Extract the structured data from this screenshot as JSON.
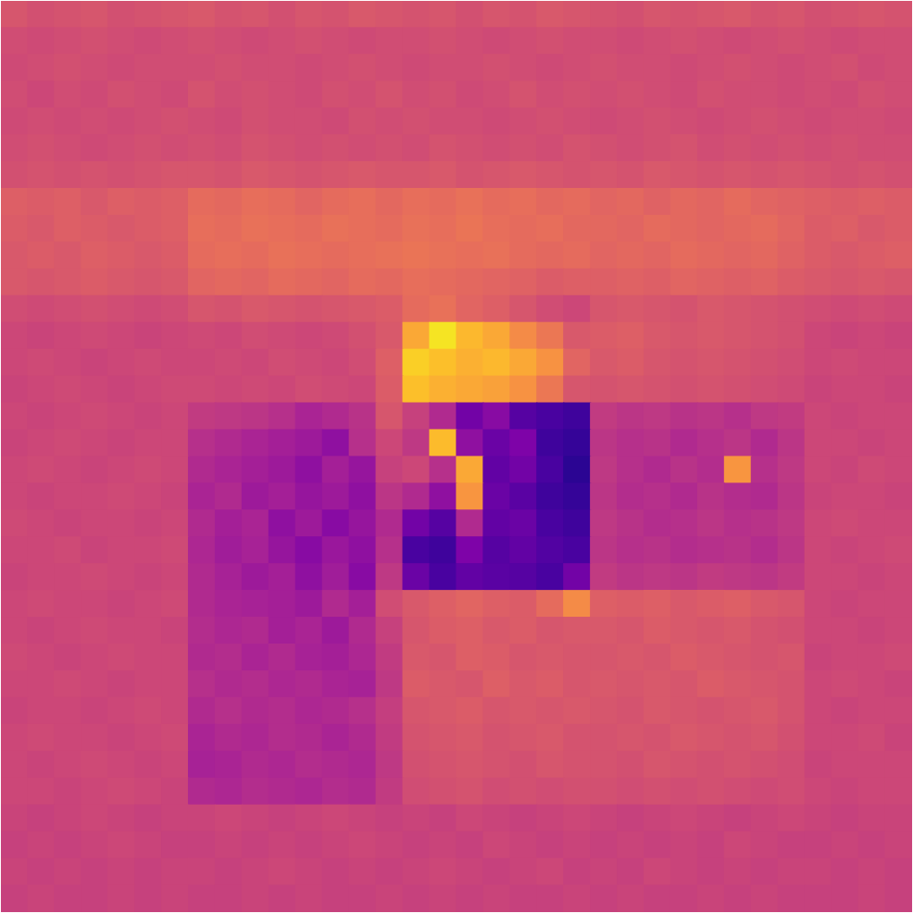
{
  "chart_data": {
    "type": "heatmap",
    "color": "plasma",
    "tick_labels": false,
    "color_range": [
      0,
      1
    ],
    "cells": [
      [
        0.55,
        0.53,
        0.54,
        0.55,
        0.53,
        0.54,
        0.55,
        0.56,
        0.54,
        0.55,
        0.53,
        0.55,
        0.54,
        0.56,
        0.55,
        0.54,
        0.55,
        0.53,
        0.55,
        0.54,
        0.56,
        0.55,
        0.54,
        0.53,
        0.55,
        0.54,
        0.55,
        0.56,
        0.54,
        0.55,
        0.53,
        0.54,
        0.55,
        0.54
      ],
      [
        0.52,
        0.51,
        0.52,
        0.53,
        0.52,
        0.51,
        0.52,
        0.53,
        0.52,
        0.51,
        0.52,
        0.53,
        0.52,
        0.51,
        0.52,
        0.52,
        0.53,
        0.52,
        0.51,
        0.52,
        0.53,
        0.52,
        0.52,
        0.51,
        0.52,
        0.53,
        0.52,
        0.51,
        0.52,
        0.53,
        0.52,
        0.51,
        0.52,
        0.52
      ],
      [
        0.51,
        0.52,
        0.53,
        0.52,
        0.51,
        0.52,
        0.52,
        0.52,
        0.53,
        0.52,
        0.52,
        0.51,
        0.52,
        0.53,
        0.52,
        0.51,
        0.52,
        0.52,
        0.53,
        0.52,
        0.51,
        0.52,
        0.53,
        0.52,
        0.52,
        0.51,
        0.52,
        0.53,
        0.52,
        0.51,
        0.52,
        0.53,
        0.51,
        0.52
      ],
      [
        0.52,
        0.5,
        0.52,
        0.51,
        0.53,
        0.52,
        0.51,
        0.54,
        0.52,
        0.53,
        0.52,
        0.51,
        0.53,
        0.52,
        0.54,
        0.52,
        0.53,
        0.51,
        0.52,
        0.54,
        0.52,
        0.53,
        0.52,
        0.53,
        0.52,
        0.51,
        0.53,
        0.52,
        0.52,
        0.51,
        0.52,
        0.51,
        0.53,
        0.52
      ],
      [
        0.51,
        0.52,
        0.51,
        0.52,
        0.51,
        0.52,
        0.53,
        0.52,
        0.51,
        0.53,
        0.52,
        0.52,
        0.51,
        0.53,
        0.52,
        0.53,
        0.52,
        0.52,
        0.51,
        0.52,
        0.53,
        0.52,
        0.51,
        0.52,
        0.53,
        0.52,
        0.51,
        0.52,
        0.53,
        0.52,
        0.51,
        0.52,
        0.52,
        0.51
      ],
      [
        0.52,
        0.53,
        0.52,
        0.51,
        0.52,
        0.53,
        0.52,
        0.53,
        0.52,
        0.54,
        0.53,
        0.52,
        0.53,
        0.52,
        0.53,
        0.52,
        0.54,
        0.53,
        0.52,
        0.53,
        0.52,
        0.54,
        0.53,
        0.52,
        0.53,
        0.54,
        0.52,
        0.53,
        0.52,
        0.53,
        0.52,
        0.53,
        0.52,
        0.52
      ],
      [
        0.53,
        0.54,
        0.53,
        0.54,
        0.53,
        0.54,
        0.55,
        0.55,
        0.54,
        0.56,
        0.55,
        0.54,
        0.55,
        0.56,
        0.55,
        0.55,
        0.56,
        0.54,
        0.55,
        0.56,
        0.55,
        0.54,
        0.55,
        0.54,
        0.56,
        0.55,
        0.54,
        0.55,
        0.54,
        0.55,
        0.54,
        0.53,
        0.54,
        0.53
      ],
      [
        0.58,
        0.57,
        0.58,
        0.56,
        0.58,
        0.57,
        0.58,
        0.62,
        0.61,
        0.63,
        0.62,
        0.6,
        0.62,
        0.63,
        0.61,
        0.63,
        0.62,
        0.64,
        0.62,
        0.63,
        0.61,
        0.62,
        0.6,
        0.61,
        0.59,
        0.61,
        0.6,
        0.62,
        0.6,
        0.59,
        0.58,
        0.57,
        0.58,
        0.57
      ],
      [
        0.57,
        0.56,
        0.58,
        0.57,
        0.56,
        0.57,
        0.58,
        0.63,
        0.62,
        0.64,
        0.63,
        0.62,
        0.64,
        0.63,
        0.62,
        0.64,
        0.63,
        0.65,
        0.63,
        0.62,
        0.63,
        0.61,
        0.61,
        0.6,
        0.62,
        0.61,
        0.6,
        0.61,
        0.62,
        0.6,
        0.57,
        0.58,
        0.56,
        0.57
      ],
      [
        0.56,
        0.57,
        0.56,
        0.58,
        0.57,
        0.56,
        0.57,
        0.62,
        0.63,
        0.62,
        0.64,
        0.63,
        0.62,
        0.63,
        0.64,
        0.65,
        0.64,
        0.63,
        0.64,
        0.62,
        0.61,
        0.62,
        0.6,
        0.61,
        0.6,
        0.62,
        0.61,
        0.6,
        0.61,
        0.59,
        0.57,
        0.56,
        0.57,
        0.58
      ],
      [
        0.56,
        0.55,
        0.56,
        0.57,
        0.56,
        0.55,
        0.56,
        0.6,
        0.61,
        0.6,
        0.62,
        0.61,
        0.6,
        0.62,
        0.61,
        0.63,
        0.62,
        0.61,
        0.6,
        0.59,
        0.57,
        0.58,
        0.58,
        0.59,
        0.58,
        0.6,
        0.59,
        0.58,
        0.59,
        0.57,
        0.56,
        0.55,
        0.56,
        0.55
      ],
      [
        0.52,
        0.51,
        0.52,
        0.53,
        0.52,
        0.51,
        0.52,
        0.55,
        0.54,
        0.56,
        0.55,
        0.54,
        0.55,
        0.56,
        0.57,
        0.62,
        0.64,
        0.6,
        0.58,
        0.55,
        0.52,
        0.5,
        0.55,
        0.56,
        0.55,
        0.54,
        0.56,
        0.55,
        0.54,
        0.53,
        0.52,
        0.51,
        0.52,
        0.51
      ],
      [
        0.5,
        0.49,
        0.5,
        0.51,
        0.5,
        0.49,
        0.5,
        0.51,
        0.5,
        0.52,
        0.51,
        0.5,
        0.51,
        0.53,
        0.56,
        0.8,
        0.95,
        0.84,
        0.8,
        0.72,
        0.66,
        0.56,
        0.57,
        0.58,
        0.56,
        0.55,
        0.56,
        0.55,
        0.54,
        0.53,
        0.5,
        0.49,
        0.5,
        0.49
      ],
      [
        0.5,
        0.51,
        0.5,
        0.49,
        0.5,
        0.51,
        0.5,
        0.5,
        0.51,
        0.5,
        0.52,
        0.51,
        0.5,
        0.52,
        0.58,
        0.9,
        0.86,
        0.82,
        0.84,
        0.8,
        0.74,
        0.6,
        0.56,
        0.57,
        0.55,
        0.54,
        0.55,
        0.54,
        0.53,
        0.52,
        0.5,
        0.51,
        0.5,
        0.5
      ],
      [
        0.49,
        0.5,
        0.51,
        0.5,
        0.49,
        0.5,
        0.51,
        0.51,
        0.5,
        0.51,
        0.5,
        0.52,
        0.51,
        0.5,
        0.57,
        0.86,
        0.82,
        0.8,
        0.78,
        0.74,
        0.66,
        0.55,
        0.54,
        0.55,
        0.54,
        0.53,
        0.54,
        0.53,
        0.52,
        0.51,
        0.49,
        0.5,
        0.5,
        0.49
      ],
      [
        0.5,
        0.49,
        0.5,
        0.51,
        0.5,
        0.49,
        0.5,
        0.46,
        0.45,
        0.44,
        0.42,
        0.38,
        0.4,
        0.43,
        0.55,
        0.48,
        0.4,
        0.22,
        0.28,
        0.15,
        0.12,
        0.1,
        0.46,
        0.44,
        0.45,
        0.43,
        0.44,
        0.42,
        0.45,
        0.46,
        0.5,
        0.49,
        0.5,
        0.5
      ],
      [
        0.49,
        0.5,
        0.51,
        0.5,
        0.49,
        0.5,
        0.5,
        0.42,
        0.4,
        0.38,
        0.36,
        0.34,
        0.3,
        0.42,
        0.5,
        0.45,
        0.85,
        0.3,
        0.2,
        0.25,
        0.1,
        0.08,
        0.44,
        0.42,
        0.43,
        0.4,
        0.42,
        0.44,
        0.4,
        0.44,
        0.5,
        0.5,
        0.49,
        0.5
      ],
      [
        0.5,
        0.51,
        0.5,
        0.49,
        0.5,
        0.51,
        0.5,
        0.4,
        0.38,
        0.36,
        0.34,
        0.3,
        0.36,
        0.32,
        0.48,
        0.5,
        0.42,
        0.8,
        0.18,
        0.22,
        0.12,
        0.06,
        0.45,
        0.42,
        0.4,
        0.43,
        0.41,
        0.75,
        0.42,
        0.45,
        0.5,
        0.49,
        0.51,
        0.5
      ],
      [
        0.5,
        0.49,
        0.5,
        0.5,
        0.51,
        0.5,
        0.49,
        0.38,
        0.4,
        0.34,
        0.36,
        0.32,
        0.34,
        0.3,
        0.44,
        0.4,
        0.3,
        0.75,
        0.2,
        0.16,
        0.1,
        0.08,
        0.44,
        0.41,
        0.42,
        0.4,
        0.43,
        0.41,
        0.4,
        0.44,
        0.49,
        0.5,
        0.5,
        0.49
      ],
      [
        0.51,
        0.5,
        0.49,
        0.5,
        0.5,
        0.49,
        0.5,
        0.4,
        0.36,
        0.38,
        0.3,
        0.34,
        0.28,
        0.32,
        0.4,
        0.22,
        0.15,
        0.4,
        0.18,
        0.2,
        0.12,
        0.1,
        0.45,
        0.43,
        0.41,
        0.42,
        0.44,
        0.42,
        0.43,
        0.45,
        0.5,
        0.51,
        0.5,
        0.5
      ],
      [
        0.5,
        0.5,
        0.51,
        0.49,
        0.5,
        0.5,
        0.51,
        0.39,
        0.35,
        0.37,
        0.32,
        0.28,
        0.33,
        0.3,
        0.42,
        0.12,
        0.1,
        0.25,
        0.15,
        0.18,
        0.14,
        0.12,
        0.44,
        0.42,
        0.43,
        0.41,
        0.42,
        0.43,
        0.41,
        0.44,
        0.5,
        0.49,
        0.5,
        0.51
      ],
      [
        0.49,
        0.5,
        0.5,
        0.51,
        0.5,
        0.49,
        0.5,
        0.4,
        0.37,
        0.34,
        0.36,
        0.3,
        0.35,
        0.28,
        0.45,
        0.2,
        0.12,
        0.18,
        0.16,
        0.15,
        0.12,
        0.22,
        0.46,
        0.44,
        0.45,
        0.44,
        0.46,
        0.45,
        0.44,
        0.46,
        0.5,
        0.5,
        0.49,
        0.5
      ],
      [
        0.5,
        0.51,
        0.5,
        0.5,
        0.49,
        0.5,
        0.51,
        0.4,
        0.38,
        0.37,
        0.36,
        0.34,
        0.4,
        0.36,
        0.52,
        0.56,
        0.58,
        0.6,
        0.58,
        0.57,
        0.62,
        0.72,
        0.58,
        0.57,
        0.58,
        0.56,
        0.57,
        0.58,
        0.56,
        0.55,
        0.5,
        0.49,
        0.5,
        0.5
      ],
      [
        0.5,
        0.49,
        0.5,
        0.51,
        0.5,
        0.5,
        0.49,
        0.41,
        0.39,
        0.4,
        0.36,
        0.38,
        0.34,
        0.4,
        0.48,
        0.55,
        0.57,
        0.58,
        0.56,
        0.57,
        0.55,
        0.56,
        0.56,
        0.55,
        0.57,
        0.56,
        0.55,
        0.56,
        0.54,
        0.53,
        0.5,
        0.5,
        0.49,
        0.5
      ],
      [
        0.51,
        0.5,
        0.49,
        0.5,
        0.51,
        0.5,
        0.5,
        0.4,
        0.41,
        0.38,
        0.4,
        0.37,
        0.36,
        0.39,
        0.46,
        0.56,
        0.55,
        0.58,
        0.57,
        0.55,
        0.56,
        0.55,
        0.55,
        0.56,
        0.55,
        0.57,
        0.56,
        0.55,
        0.54,
        0.55,
        0.49,
        0.5,
        0.5,
        0.51
      ],
      [
        0.5,
        0.5,
        0.51,
        0.5,
        0.49,
        0.5,
        0.5,
        0.42,
        0.4,
        0.41,
        0.39,
        0.4,
        0.38,
        0.37,
        0.45,
        0.57,
        0.56,
        0.55,
        0.58,
        0.56,
        0.57,
        0.55,
        0.56,
        0.55,
        0.56,
        0.55,
        0.57,
        0.56,
        0.55,
        0.54,
        0.5,
        0.51,
        0.5,
        0.49
      ],
      [
        0.49,
        0.5,
        0.5,
        0.49,
        0.5,
        0.51,
        0.5,
        0.4,
        0.42,
        0.4,
        0.41,
        0.39,
        0.4,
        0.42,
        0.47,
        0.55,
        0.56,
        0.57,
        0.55,
        0.56,
        0.55,
        0.56,
        0.55,
        0.54,
        0.56,
        0.55,
        0.54,
        0.55,
        0.56,
        0.54,
        0.5,
        0.49,
        0.5,
        0.5
      ],
      [
        0.5,
        0.51,
        0.5,
        0.5,
        0.49,
        0.5,
        0.51,
        0.38,
        0.4,
        0.39,
        0.41,
        0.4,
        0.38,
        0.4,
        0.46,
        0.54,
        0.55,
        0.56,
        0.54,
        0.55,
        0.56,
        0.54,
        0.54,
        0.55,
        0.54,
        0.56,
        0.55,
        0.54,
        0.55,
        0.53,
        0.5,
        0.5,
        0.51,
        0.49
      ],
      [
        0.5,
        0.49,
        0.5,
        0.51,
        0.5,
        0.49,
        0.5,
        0.37,
        0.38,
        0.4,
        0.39,
        0.41,
        0.4,
        0.39,
        0.45,
        0.53,
        0.54,
        0.55,
        0.54,
        0.53,
        0.55,
        0.54,
        0.54,
        0.53,
        0.55,
        0.54,
        0.53,
        0.54,
        0.53,
        0.52,
        0.49,
        0.5,
        0.5,
        0.5
      ],
      [
        0.5,
        0.5,
        0.49,
        0.5,
        0.51,
        0.5,
        0.49,
        0.4,
        0.39,
        0.41,
        0.4,
        0.39,
        0.41,
        0.4,
        0.46,
        0.52,
        0.53,
        0.54,
        0.52,
        0.53,
        0.52,
        0.53,
        0.53,
        0.52,
        0.53,
        0.52,
        0.53,
        0.52,
        0.51,
        0.52,
        0.5,
        0.49,
        0.5,
        0.5
      ],
      [
        0.49,
        0.48,
        0.49,
        0.5,
        0.49,
        0.48,
        0.49,
        0.49,
        0.5,
        0.49,
        0.48,
        0.49,
        0.5,
        0.49,
        0.48,
        0.49,
        0.48,
        0.5,
        0.49,
        0.48,
        0.49,
        0.5,
        0.49,
        0.48,
        0.49,
        0.5,
        0.49,
        0.48,
        0.49,
        0.5,
        0.49,
        0.48,
        0.49,
        0.49
      ],
      [
        0.48,
        0.49,
        0.48,
        0.49,
        0.5,
        0.49,
        0.48,
        0.48,
        0.49,
        0.48,
        0.49,
        0.48,
        0.49,
        0.5,
        0.49,
        0.48,
        0.49,
        0.48,
        0.5,
        0.49,
        0.48,
        0.49,
        0.48,
        0.49,
        0.48,
        0.49,
        0.48,
        0.5,
        0.49,
        0.48,
        0.48,
        0.49,
        0.48,
        0.49
      ],
      [
        0.49,
        0.48,
        0.49,
        0.48,
        0.49,
        0.48,
        0.49,
        0.49,
        0.48,
        0.49,
        0.5,
        0.49,
        0.48,
        0.49,
        0.48,
        0.49,
        0.5,
        0.49,
        0.48,
        0.49,
        0.5,
        0.48,
        0.49,
        0.48,
        0.5,
        0.49,
        0.48,
        0.49,
        0.48,
        0.49,
        0.49,
        0.48,
        0.49,
        0.48
      ],
      [
        0.48,
        0.49,
        0.48,
        0.48,
        0.49,
        0.48,
        0.49,
        0.48,
        0.48,
        0.49,
        0.48,
        0.49,
        0.48,
        0.48,
        0.49,
        0.48,
        0.49,
        0.48,
        0.49,
        0.48,
        0.48,
        0.49,
        0.48,
        0.49,
        0.48,
        0.48,
        0.49,
        0.48,
        0.49,
        0.48,
        0.48,
        0.48,
        0.49,
        0.48
      ]
    ]
  }
}
